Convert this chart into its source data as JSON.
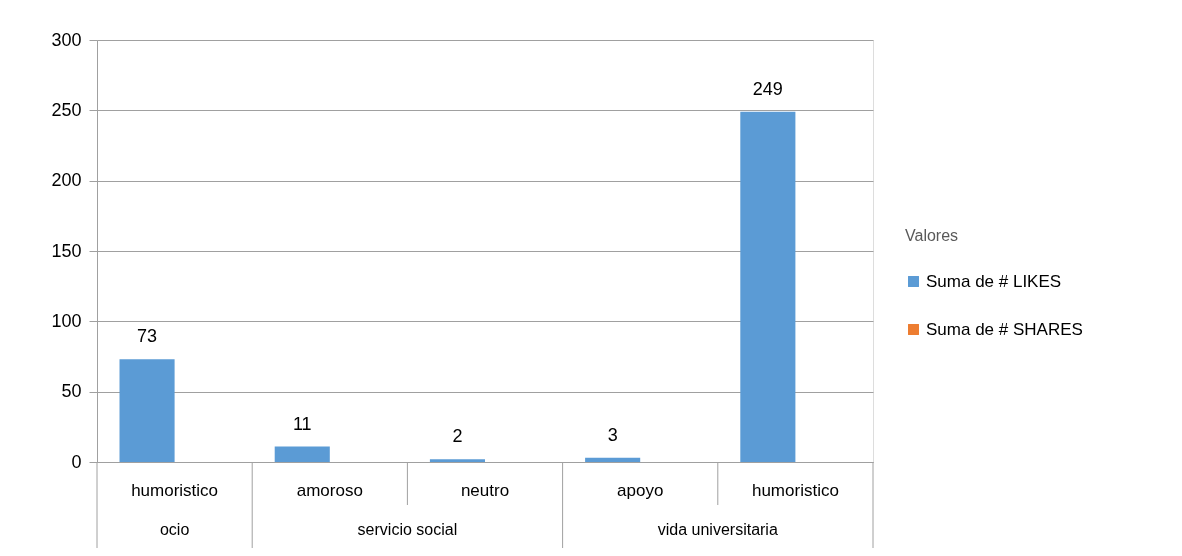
{
  "chart_data": {
    "type": "bar",
    "categories": [
      "humoristico",
      "amoroso",
      "neutro",
      "apoyo",
      "humoristico"
    ],
    "series": [
      {
        "name": "Suma de # LIKES",
        "color": "#5b9bd5",
        "values": [
          73,
          11,
          2,
          3,
          249
        ]
      },
      {
        "name": "Suma de # SHARES",
        "color": "#ed7d31",
        "values": [
          null,
          null,
          null,
          null,
          null
        ]
      }
    ],
    "ylim": [
      0,
      300
    ],
    "yticks": [
      0,
      50,
      100,
      150,
      200,
      250,
      300
    ],
    "grid": "y",
    "legend": "right",
    "legend_title": "Valores",
    "data_labels": true,
    "annotations": [
      "ocio",
      "servicio social",
      "vida universitaria"
    ]
  }
}
